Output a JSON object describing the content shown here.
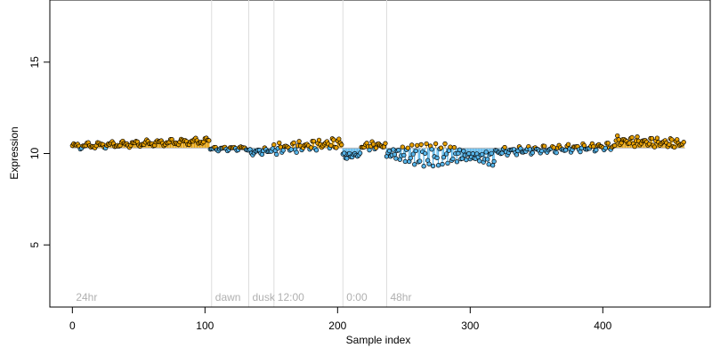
{
  "chart_data": {
    "type": "scatter",
    "title": "",
    "xlabel": "Sample index",
    "ylabel": "Expression",
    "xlim": [
      -17,
      481
    ],
    "ylim": [
      1.6,
      18.4
    ],
    "x_ticks": [
      0,
      100,
      200,
      300,
      400
    ],
    "y_ticks": [
      5,
      10,
      15
    ],
    "grid": false,
    "baseline": 10.3,
    "colors": {
      "above": "#E69F00",
      "below": "#56B4E9",
      "vline": "#dddddd",
      "annotation": "#b0b0b0",
      "point_stroke": "#000000"
    },
    "annotations": [
      {
        "label": "24hr",
        "x": 0
      },
      {
        "label": "dawn",
        "x": 105
      },
      {
        "label": "dusk",
        "x": 133
      },
      {
        "label": "12:00",
        "x": 152
      },
      {
        "label": "0:00",
        "x": 204
      },
      {
        "label": "48hr",
        "x": 237
      }
    ],
    "segments": [
      {
        "x_start": 0,
        "x_end": 104,
        "start": 10.4,
        "end": 10.7,
        "amplitude": 0.12,
        "period": 9
      },
      {
        "x_start": 104,
        "x_end": 133,
        "start": 10.25,
        "end": 10.3,
        "amplitude": 0.08,
        "period": 7
      },
      {
        "x_start": 133,
        "x_end": 152,
        "start": 10.05,
        "end": 10.2,
        "amplitude": 0.12,
        "period": 6
      },
      {
        "x_start": 152,
        "x_end": 204,
        "start": 10.25,
        "end": 10.6,
        "amplitude": 0.2,
        "period": 5
      },
      {
        "x_start": 204,
        "x_end": 218,
        "start": 9.85,
        "end": 9.95,
        "amplitude": 0.2,
        "period": 4
      },
      {
        "x_start": 218,
        "x_end": 237,
        "start": 10.4,
        "end": 10.45,
        "amplitude": 0.15,
        "period": 5
      },
      {
        "x_start": 237,
        "x_end": 280,
        "start": 10.0,
        "end": 9.9,
        "amplitude": 0.4,
        "period": 3.5
      },
      {
        "x_start": 280,
        "x_end": 320,
        "start": 10.0,
        "end": 9.7,
        "amplitude": 0.4,
        "period": 3.5
      },
      {
        "x_start": 320,
        "x_end": 410,
        "start": 10.1,
        "end": 10.4,
        "amplitude": 0.15,
        "period": 6
      },
      {
        "x_start": 410,
        "x_end": 462,
        "start": 10.7,
        "end": 10.55,
        "amplitude": 0.18,
        "period": 5
      }
    ]
  }
}
